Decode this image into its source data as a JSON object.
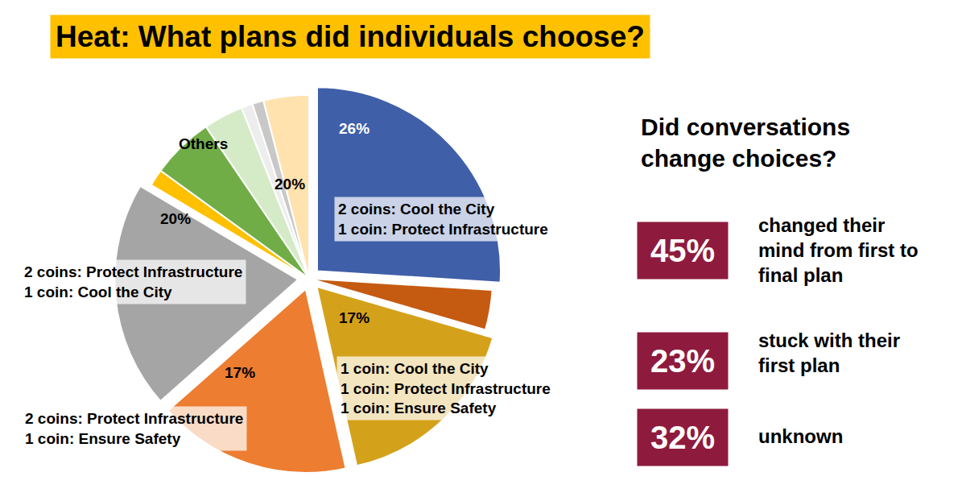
{
  "chart_data": {
    "type": "pie",
    "title": "Heat: What plans did individuals choose?",
    "categories": [
      "2 coins: Cool the City\n1 coin: Protect Infrastructure",
      null,
      "1 coin: Cool the City\n1 coin: Protect Infrastructure\n1 coin: Ensure Safety",
      "2 coins: Protect Infrastructure\n1 coin: Ensure Safety",
      "2 coins: Protect Infrastructure\n1 coin: Cool the City",
      null,
      null,
      null,
      null,
      null,
      null
    ],
    "values": [
      26,
      3.5,
      17,
      17,
      20,
      1.5,
      5.5,
      3.5,
      1,
      1,
      4
    ],
    "value_labels": [
      "26%",
      null,
      "17%",
      "17%",
      "20%",
      null,
      null,
      null,
      null,
      null,
      null
    ],
    "colors": [
      "#3F5FA8",
      "#C55A11",
      "#D4A21A",
      "#ED7D31",
      "#A5A5A5",
      "#FFC000",
      "#70AD47",
      "#D5EBC8",
      "#EDEDED",
      "#C8C8C8",
      "#FFE2AE"
    ],
    "others": {
      "label": "Others",
      "value": 20,
      "value_label": "20%"
    },
    "data_labels": true
  },
  "side_panel": {
    "heading": "Did conversations\nchange choices?",
    "items": [
      {
        "value": 45,
        "value_label": "45%",
        "text": "changed their\nmind from first to\nfinal plan"
      },
      {
        "value": 23,
        "value_label": "23%",
        "text": "stuck with their\nfirst plan"
      },
      {
        "value": 32,
        "value_label": "32%",
        "text": "unknown"
      }
    ]
  }
}
